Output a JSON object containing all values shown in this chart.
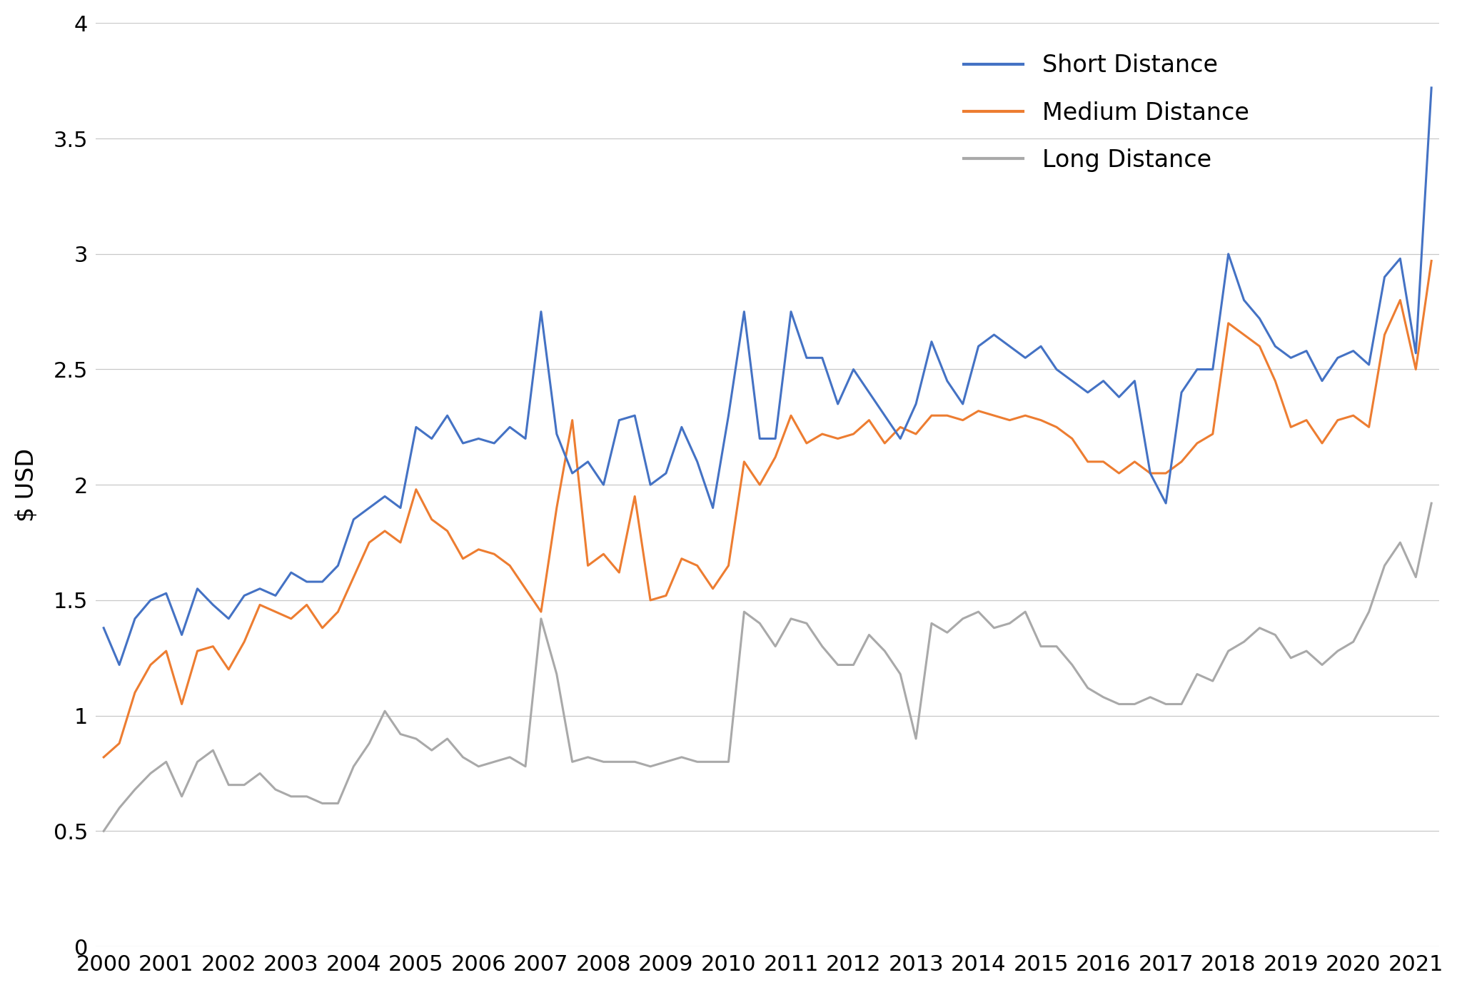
{
  "ylabel": "$ USD",
  "ylim": [
    0,
    4.0
  ],
  "yticks": [
    0,
    0.5,
    1.0,
    1.5,
    2.0,
    2.5,
    3.0,
    3.5,
    4.0
  ],
  "x_labels": [
    "2000",
    "2001",
    "2002",
    "2003",
    "2004",
    "2005",
    "2006",
    "2007",
    "2008",
    "2009",
    "2010",
    "2011",
    "2012",
    "2013",
    "2014",
    "2015",
    "2016",
    "2017",
    "2018",
    "2019",
    "2020",
    "2021"
  ],
  "short_distance": [
    1.38,
    1.22,
    1.42,
    1.5,
    1.53,
    1.35,
    1.55,
    1.48,
    1.42,
    1.52,
    1.55,
    1.52,
    1.62,
    1.58,
    1.58,
    1.65,
    1.85,
    1.9,
    1.95,
    1.9,
    2.25,
    2.2,
    2.3,
    2.18,
    2.2,
    2.18,
    2.25,
    2.2,
    2.75,
    2.22,
    2.05,
    2.1,
    2.0,
    2.28,
    2.3,
    2.0,
    2.05,
    2.25,
    2.1,
    1.9,
    2.3,
    2.75,
    2.2,
    2.2,
    2.75,
    2.55,
    2.55,
    2.35,
    2.5,
    2.4,
    2.3,
    2.2,
    2.35,
    2.62,
    2.45,
    2.35,
    2.6,
    2.65,
    2.6,
    2.55,
    2.6,
    2.5,
    2.45,
    2.4,
    2.45,
    2.38,
    2.45,
    2.05,
    1.92,
    2.4,
    2.5,
    2.5,
    3.0,
    2.8,
    2.72,
    2.6,
    2.55,
    2.58,
    2.45,
    2.55,
    2.58,
    2.52,
    2.9,
    2.98,
    2.57,
    3.72
  ],
  "medium_distance": [
    0.82,
    0.88,
    1.1,
    1.22,
    1.28,
    1.05,
    1.28,
    1.3,
    1.2,
    1.32,
    1.48,
    1.45,
    1.42,
    1.48,
    1.38,
    1.45,
    1.6,
    1.75,
    1.8,
    1.75,
    1.98,
    1.85,
    1.8,
    1.68,
    1.72,
    1.7,
    1.65,
    1.55,
    1.45,
    1.9,
    2.28,
    1.65,
    1.7,
    1.62,
    1.95,
    1.5,
    1.52,
    1.68,
    1.65,
    1.55,
    1.65,
    2.1,
    2.0,
    2.12,
    2.3,
    2.18,
    2.22,
    2.2,
    2.22,
    2.28,
    2.18,
    2.25,
    2.22,
    2.3,
    2.3,
    2.28,
    2.32,
    2.3,
    2.28,
    2.3,
    2.28,
    2.25,
    2.2,
    2.1,
    2.1,
    2.05,
    2.1,
    2.05,
    2.05,
    2.1,
    2.18,
    2.22,
    2.7,
    2.65,
    2.6,
    2.45,
    2.25,
    2.28,
    2.18,
    2.28,
    2.3,
    2.25,
    2.65,
    2.8,
    2.5,
    2.97
  ],
  "long_distance": [
    0.5,
    0.6,
    0.68,
    0.75,
    0.8,
    0.65,
    0.8,
    0.85,
    0.7,
    0.7,
    0.75,
    0.68,
    0.65,
    0.65,
    0.62,
    0.62,
    0.78,
    0.88,
    1.02,
    0.92,
    0.9,
    0.85,
    0.9,
    0.82,
    0.78,
    0.8,
    0.82,
    0.78,
    1.42,
    1.18,
    0.8,
    0.82,
    0.8,
    0.8,
    0.8,
    0.78,
    0.8,
    0.82,
    0.8,
    0.8,
    0.8,
    1.45,
    1.4,
    1.3,
    1.42,
    1.4,
    1.3,
    1.22,
    1.22,
    1.35,
    1.28,
    1.18,
    0.9,
    1.4,
    1.36,
    1.42,
    1.45,
    1.38,
    1.4,
    1.45,
    1.3,
    1.3,
    1.22,
    1.12,
    1.08,
    1.05,
    1.05,
    1.08,
    1.05,
    1.05,
    1.18,
    1.15,
    1.28,
    1.32,
    1.38,
    1.35,
    1.25,
    1.28,
    1.22,
    1.28,
    1.32,
    1.45,
    1.65,
    1.75,
    1.6,
    1.92
  ],
  "line_colors": {
    "short": "#4472C4",
    "medium": "#ED7D31",
    "long": "#A9A9A9"
  },
  "legend_labels": [
    "Short Distance",
    "Medium Distance",
    "Long Distance"
  ],
  "background_color": "#FFFFFF",
  "grid_color": "#C8C8C8",
  "line_width": 2.2
}
